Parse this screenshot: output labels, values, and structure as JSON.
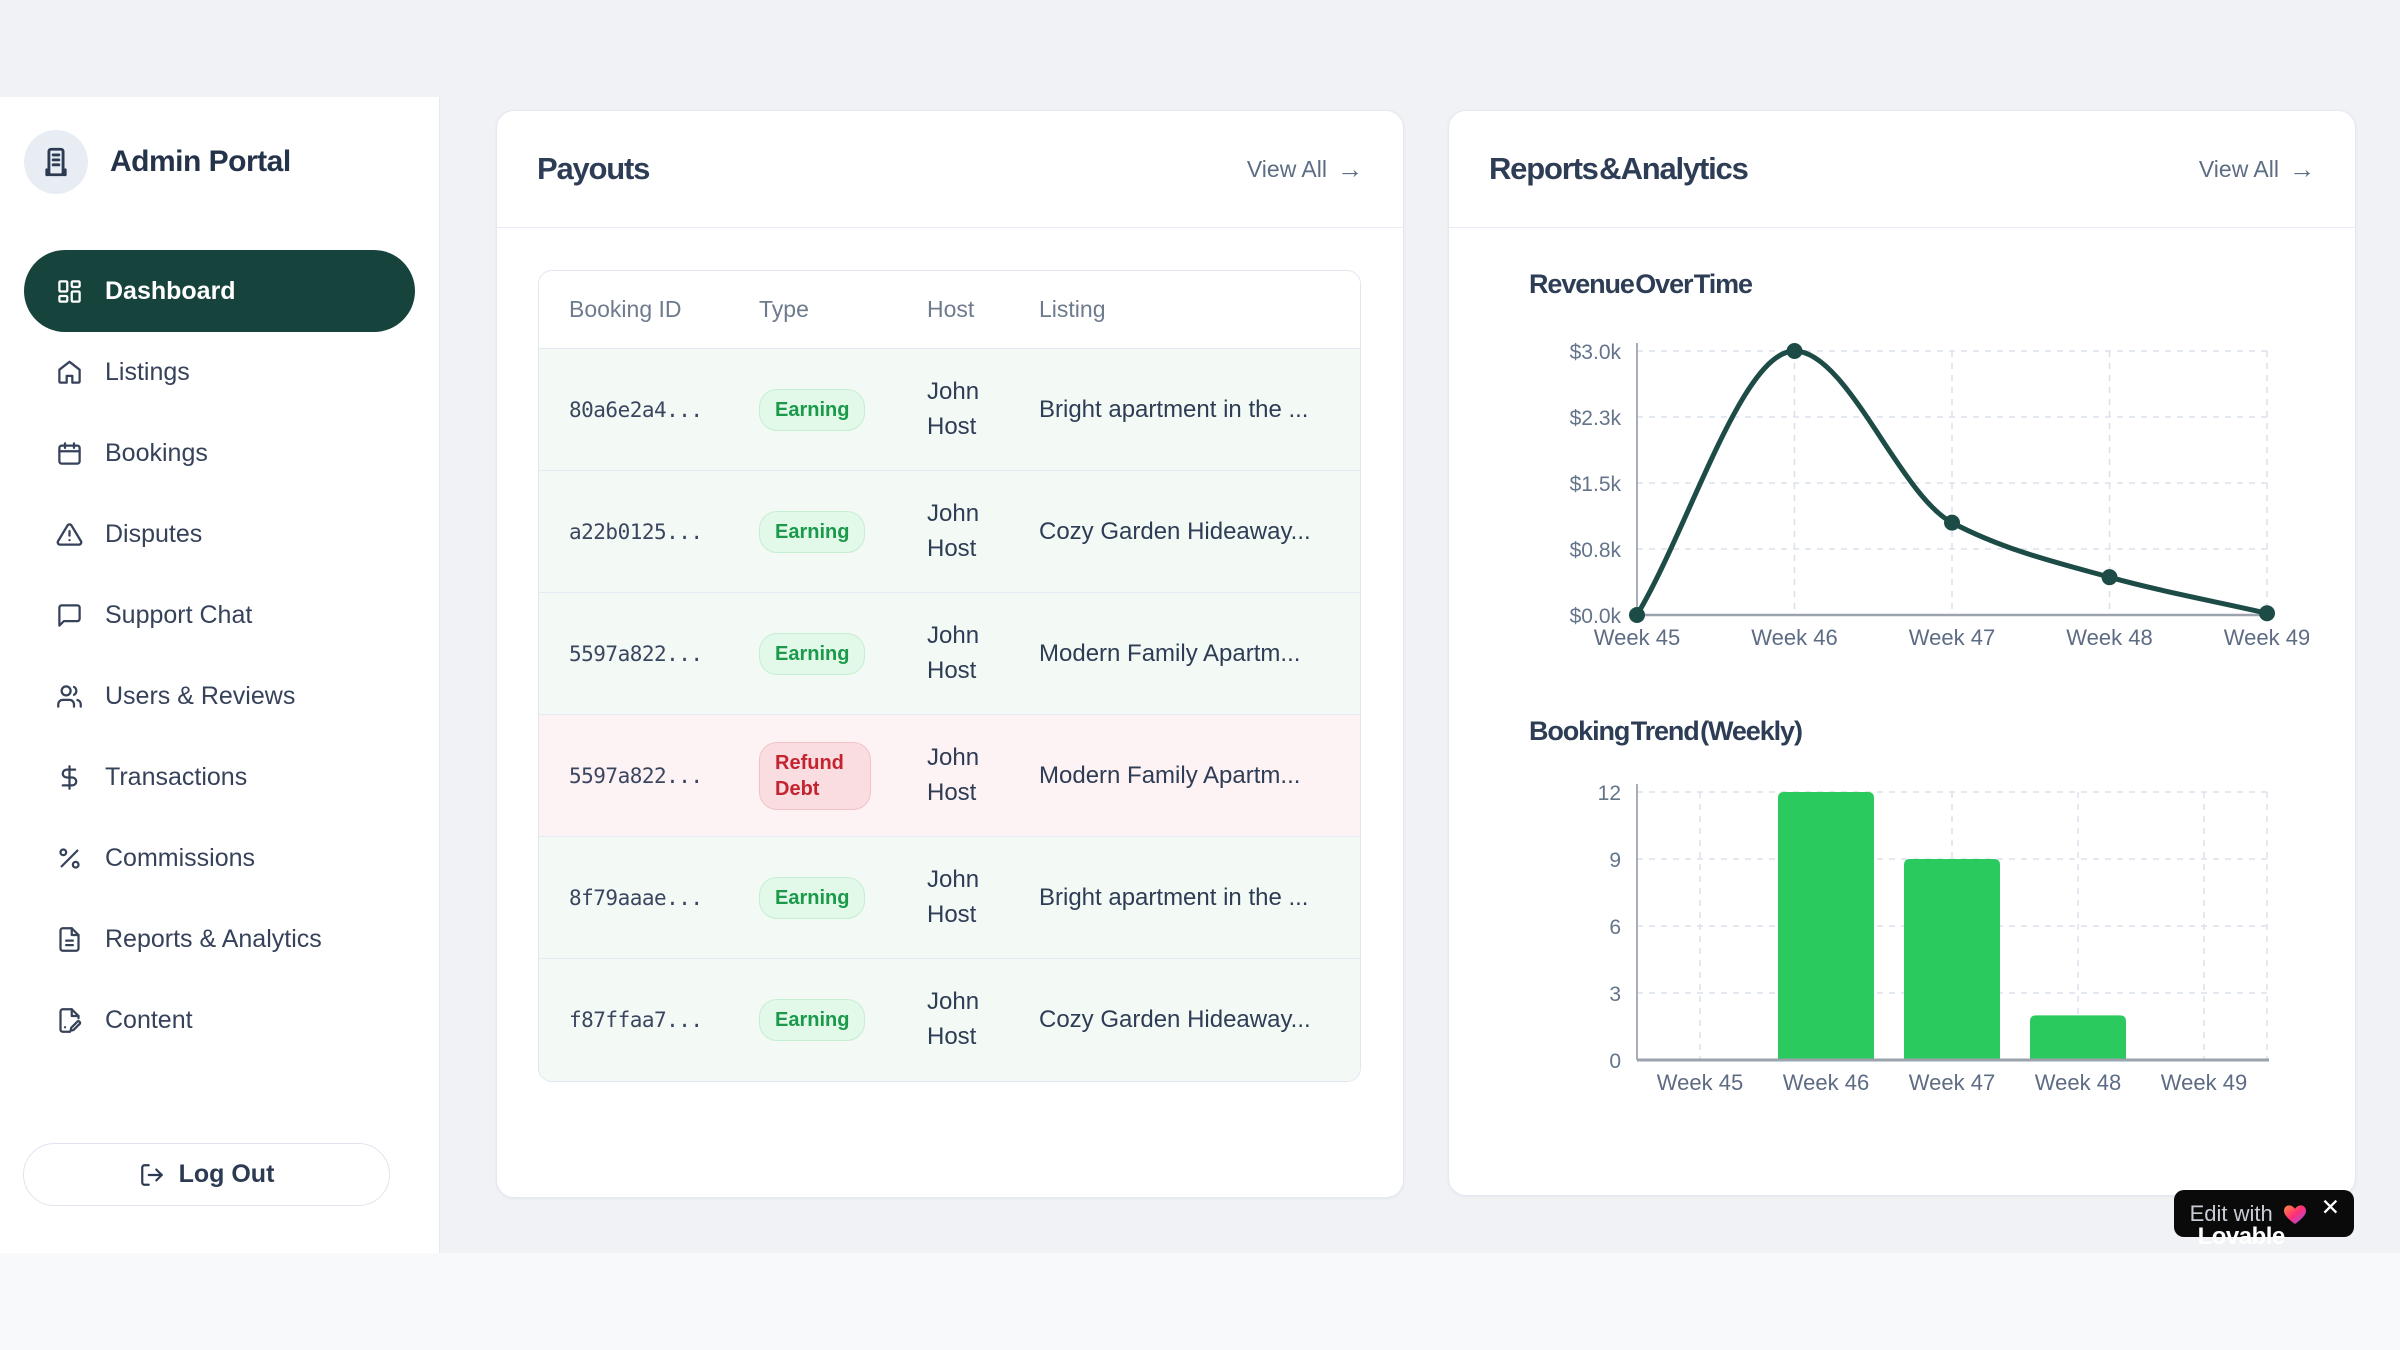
{
  "app": {
    "title": "Admin Portal"
  },
  "sidebar": {
    "items": [
      {
        "id": "dashboard",
        "label": "Dashboard",
        "icon": "layout-dashboard-icon",
        "active": true
      },
      {
        "id": "listings",
        "label": "Listings",
        "icon": "home-icon",
        "active": false
      },
      {
        "id": "bookings",
        "label": "Bookings",
        "icon": "calendar-icon",
        "active": false
      },
      {
        "id": "disputes",
        "label": "Disputes",
        "icon": "alert-triangle-icon",
        "active": false
      },
      {
        "id": "support-chat",
        "label": "Support Chat",
        "icon": "message-square-icon",
        "active": false
      },
      {
        "id": "users-reviews",
        "label": "Users & Reviews",
        "icon": "users-icon",
        "active": false
      },
      {
        "id": "transactions",
        "label": "Transactions",
        "icon": "dollar-icon",
        "active": false
      },
      {
        "id": "commissions",
        "label": "Commissions",
        "icon": "percent-icon",
        "active": false
      },
      {
        "id": "reports-analytics",
        "label": "Reports & Analytics",
        "icon": "file-text-icon",
        "active": false
      },
      {
        "id": "content",
        "label": "Content",
        "icon": "file-pen-icon",
        "active": false
      }
    ],
    "logout_label": "Log Out"
  },
  "payouts": {
    "title": "Payouts",
    "view_all_label": "View All",
    "view_all_arrow": "→",
    "table": {
      "columns": [
        "Booking ID",
        "Type",
        "Host",
        "Listing"
      ],
      "rows": [
        {
          "booking_id": "80a6e2a4...",
          "type": "Earning",
          "variant": "earning",
          "host": "John Host",
          "listing": "Bright apartment in the ..."
        },
        {
          "booking_id": "a22b0125...",
          "type": "Earning",
          "variant": "earning",
          "host": "John Host",
          "listing": "Cozy Garden Hideaway..."
        },
        {
          "booking_id": "5597a822...",
          "type": "Earning",
          "variant": "earning",
          "host": "John Host",
          "listing": "Modern Family Apartm..."
        },
        {
          "booking_id": "5597a822...",
          "type": "Refund Debt",
          "variant": "refund",
          "host": "John Host",
          "listing": "Modern Family Apartm..."
        },
        {
          "booking_id": "8f79aaae...",
          "type": "Earning",
          "variant": "earning",
          "host": "John Host",
          "listing": "Bright apartment in the ..."
        },
        {
          "booking_id": "f87ffaa7...",
          "type": "Earning",
          "variant": "earning",
          "host": "John Host",
          "listing": "Cozy Garden Hideaway..."
        }
      ]
    }
  },
  "reports": {
    "title": "Reports & Analytics",
    "view_all_label": "View All",
    "view_all_arrow": "→"
  },
  "chart_data": [
    {
      "type": "line",
      "title": "Revenue Over Time",
      "x": [
        "Week 45",
        "Week 46",
        "Week 47",
        "Week 48",
        "Week 49"
      ],
      "values": [
        0,
        3000,
        1050,
        430,
        20
      ],
      "ylim": [
        0,
        3000
      ],
      "ytick_labels": [
        "$0.0k",
        "$0.8k",
        "$1.5k",
        "$2.3k",
        "$3.0k"
      ],
      "grid": true,
      "legend": "none",
      "line_color": "#1d4b46",
      "dot_color": "#1d4b46",
      "grid_color": "#dbe0eb",
      "axis_color": "#a7aeba",
      "tick_color": "#64748b"
    },
    {
      "type": "bar",
      "title": "Booking Trend (Weekly)",
      "categories": [
        "Week 45",
        "Week 46",
        "Week 47",
        "Week 48",
        "Week 49"
      ],
      "values": [
        0,
        12,
        9,
        2,
        0
      ],
      "ylim": [
        0,
        12
      ],
      "yticks": [
        0,
        3,
        6,
        9,
        12
      ],
      "grid": true,
      "legend": "none",
      "bar_color": "#2bca5e",
      "grid_color": "#dbe0eb",
      "axis_color": "#a7aeba",
      "tick_color": "#64748b"
    }
  ],
  "lovable_badge": {
    "prefix": "Edit with",
    "brand": "Lovable",
    "close": "✕"
  },
  "colors": {
    "sidebar_active_bg": "#17433d",
    "earning_text": "#1a9a4a",
    "refund_text": "#c42330",
    "line_series": "#1d4b46",
    "bar_series": "#2bca5e"
  }
}
